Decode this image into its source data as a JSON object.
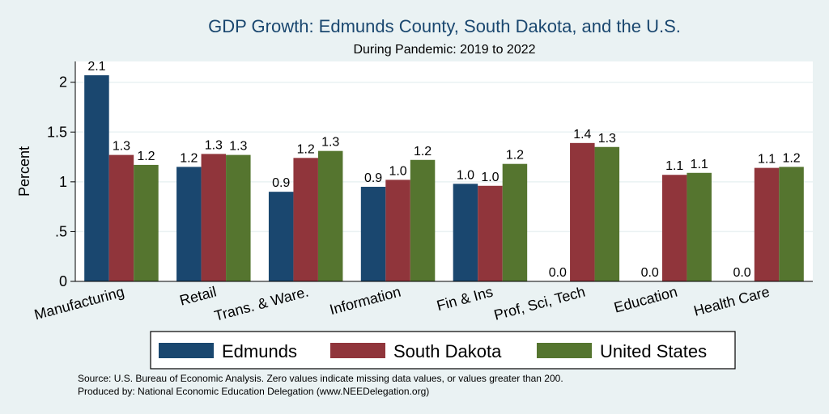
{
  "chart_data": {
    "type": "bar",
    "title": "GDP Growth: Edmunds County, South Dakota, and the U.S.",
    "subtitle": "During Pandemic: 2019 to 2022",
    "xlabel": "",
    "ylabel": "Percent",
    "ylim": [
      0,
      2.2
    ],
    "yticks": [
      0,
      0.5,
      1,
      1.5,
      2
    ],
    "ytick_labels": [
      "0",
      ".5",
      "1",
      "1.5",
      "2"
    ],
    "grid": true,
    "legend_position": "bottom",
    "categories": [
      "Manufacturing",
      "Retail",
      "Trans. & Ware.",
      "Information",
      "Fin & Ins",
      "Prof, Sci, Tech",
      "Education",
      "Health Care"
    ],
    "series": [
      {
        "name": "Edmunds",
        "color": "#1a476f",
        "values": [
          2.07,
          1.15,
          0.9,
          0.95,
          0.98,
          0.0,
          0.0,
          0.0
        ],
        "labels": [
          "2.1",
          "1.2",
          "0.9",
          "0.9",
          "1.0",
          "0.0",
          "0.0",
          "0.0"
        ]
      },
      {
        "name": "South Dakota",
        "color": "#90353b",
        "values": [
          1.27,
          1.28,
          1.24,
          1.02,
          0.96,
          1.39,
          1.07,
          1.14
        ],
        "labels": [
          "1.3",
          "1.3",
          "1.2",
          "1.0",
          "1.0",
          "1.4",
          "1.1",
          "1.1"
        ]
      },
      {
        "name": "United States",
        "color": "#55752f",
        "values": [
          1.17,
          1.27,
          1.31,
          1.22,
          1.18,
          1.35,
          1.09,
          1.15
        ],
        "labels": [
          "1.2",
          "1.3",
          "1.3",
          "1.2",
          "1.2",
          "1.3",
          "1.1",
          "1.2"
        ]
      }
    ],
    "source_lines": [
      "Source: U.S. Bureau of Economic Analysis. Zero values indicate missing data values, or values greater than 200.",
      "Produced by: National Economic Education Delegation (www.NEEDelegation.org)"
    ]
  }
}
